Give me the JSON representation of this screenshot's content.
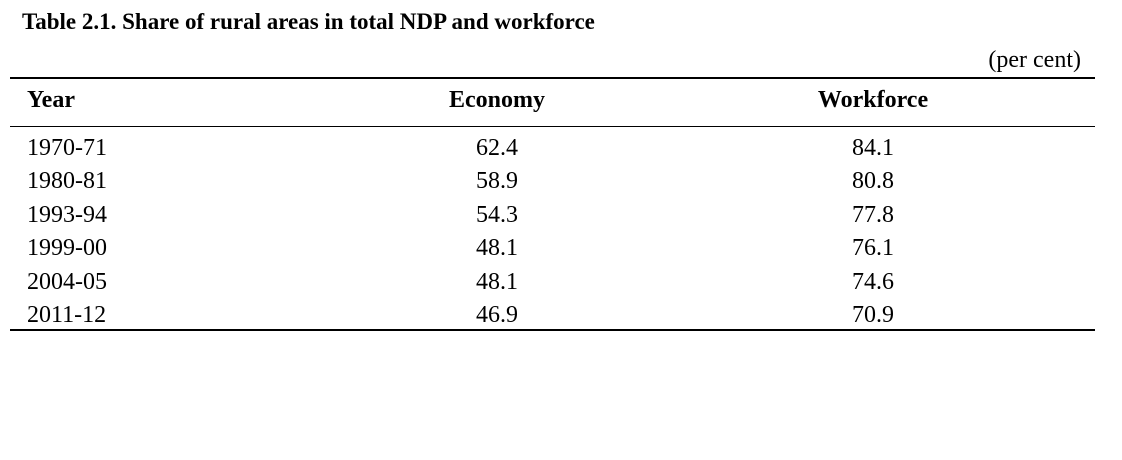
{
  "header": {
    "title": "Table 2.1. Share of rural areas in total NDP and workforce",
    "unit": "(per cent)"
  },
  "table": {
    "columns": [
      "Year",
      "Economy",
      "Workforce"
    ],
    "rows": [
      [
        "1970-71",
        "62.4",
        "84.1"
      ],
      [
        "1980-81",
        "58.9",
        "80.8"
      ],
      [
        "1993-94",
        "54.3",
        "77.8"
      ],
      [
        "1999-00",
        "48.1",
        "76.1"
      ],
      [
        "2004-05",
        "48.1",
        "74.6"
      ],
      [
        "2011-12",
        "46.9",
        "70.9"
      ]
    ]
  }
}
